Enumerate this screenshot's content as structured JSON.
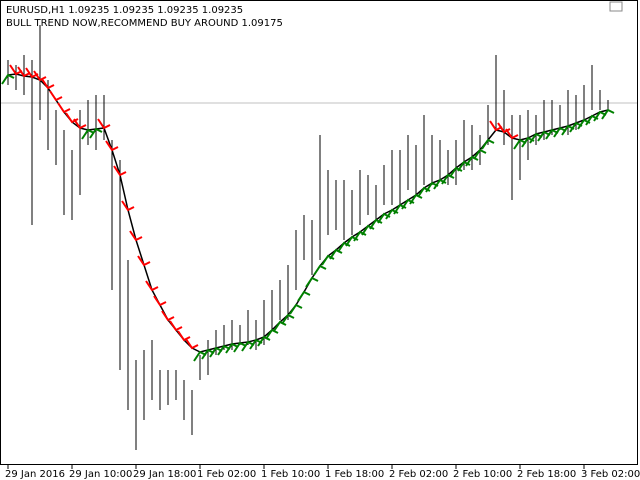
{
  "chart_data": {
    "type": "ohlc",
    "title": "EURUSD,H1  1.09235 1.09235 1.09235 1.09235",
    "annotation": "BULL TREND NOW,RECOMMEND BUY AROUND 1.09175",
    "categories": [
      "29 Jan 2016",
      null,
      null,
      null,
      null,
      null,
      null,
      null,
      "29 Jan 10:00",
      null,
      null,
      null,
      null,
      null,
      null,
      null,
      "29 Jan 18:00",
      null,
      null,
      null,
      null,
      null,
      null,
      null,
      "1 Feb 02:00",
      null,
      null,
      null,
      null,
      null,
      null,
      null,
      "1 Feb 10:00",
      null,
      null,
      null,
      null,
      null,
      null,
      null,
      "1 Feb 18:00",
      null,
      null,
      null,
      null,
      null,
      null,
      null,
      "2 Feb 02:00",
      null,
      null,
      null,
      null,
      null,
      null,
      null,
      "2 Feb 10:00",
      null,
      null,
      null,
      null,
      null,
      null,
      null,
      "2 Feb 18:00",
      null,
      null,
      null,
      null,
      null,
      null,
      null,
      "3 Feb 02:00",
      null,
      null,
      null
    ],
    "high": [
      1.0945,
      1.09425,
      1.09475,
      1.0945,
      1.09625,
      1.0935,
      1.092,
      1.091,
      1.09,
      1.092,
      1.0925,
      1.09275,
      1.09275,
      1.0905,
      1.0895,
      1.0845,
      1.0795,
      1.08,
      1.0805,
      1.079,
      1.079,
      1.079,
      1.0785,
      1.078,
      1.07975,
      1.0805,
      1.081,
      1.08125,
      1.0815,
      1.08125,
      1.082,
      1.0815,
      1.0825,
      1.083,
      1.0835,
      1.08425,
      1.086,
      1.08675,
      1.0865,
      1.09075,
      1.089,
      1.0885,
      1.0885,
      1.088,
      1.089,
      1.08875,
      1.08825,
      1.08925,
      1.09,
      1.09,
      1.09075,
      1.09025,
      1.09175,
      1.09075,
      1.0905,
      1.09,
      1.0905,
      1.0915,
      1.09125,
      1.09075,
      1.09225,
      1.09475,
      1.093,
      1.09175,
      1.09175,
      1.092,
      1.09175,
      1.0925,
      1.0925,
      1.09225,
      1.093,
      1.09275,
      1.09325,
      1.09425,
      1.093,
      1.0925
    ],
    "low": [
      1.09325,
      1.093,
      1.09275,
      1.08625,
      1.0915,
      1.09,
      1.08925,
      1.08675,
      1.0865,
      1.08775,
      1.09025,
      1.09,
      1.0905,
      1.083,
      1.079,
      1.077,
      1.075,
      1.0765,
      1.0775,
      1.077,
      1.07725,
      1.0775,
      1.0765,
      1.07575,
      1.0785,
      1.07875,
      1.07975,
      1.08,
      1.08,
      1.08025,
      1.08025,
      1.08,
      1.08025,
      1.081,
      1.0815,
      1.0815,
      1.083,
      1.0845,
      1.08375,
      1.0845,
      1.08575,
      1.086,
      1.0855,
      1.08575,
      1.08625,
      1.08675,
      1.0865,
      1.08725,
      1.08725,
      1.08725,
      1.088,
      1.08775,
      1.08825,
      1.08825,
      1.0885,
      1.08825,
      1.08825,
      1.089,
      1.089,
      1.08925,
      1.09025,
      1.091,
      1.09025,
      1.0875,
      1.0885,
      1.0895,
      1.09025,
      1.0905,
      1.09075,
      1.091,
      1.09075,
      1.091,
      1.0915,
      1.092,
      1.092,
      1.092
    ],
    "bar_color": "#000000",
    "trend": {
      "color": "#000000",
      "up_color": "#008000",
      "down_color": "#ff0000",
      "values": [
        1.09375,
        1.0938,
        1.0937,
        1.09365,
        1.0935,
        1.0931,
        1.0925,
        1.0919,
        1.0914,
        1.0911,
        1.091,
        1.09105,
        1.0911,
        1.09,
        1.08875,
        1.087,
        1.0855,
        1.08425,
        1.083,
        1.08225,
        1.0815,
        1.081,
        1.0805,
        1.0801,
        1.0799,
        1.08,
        1.0801,
        1.0802,
        1.0803,
        1.08035,
        1.0804,
        1.0805,
        1.08065,
        1.081,
        1.0814,
        1.08175,
        1.08225,
        1.0829,
        1.0836,
        1.0842,
        1.0847,
        1.085,
        1.08535,
        1.08565,
        1.0859,
        1.0862,
        1.0865,
        1.0868,
        1.087,
        1.08725,
        1.0875,
        1.08775,
        1.0881,
        1.08835,
        1.0885,
        1.08875,
        1.0891,
        1.0894,
        1.08965,
        1.09,
        1.0905,
        1.091,
        1.0909,
        1.0906,
        1.0905,
        1.0906,
        1.0908,
        1.0909,
        1.091,
        1.0911,
        1.0912,
        1.09135,
        1.0915,
        1.0917,
        1.0919,
        1.092
      ]
    },
    "price_line": 1.09235,
    "price_line_color": "#c0c0c0",
    "ylim": [
      1.07425,
      1.0975
    ]
  }
}
